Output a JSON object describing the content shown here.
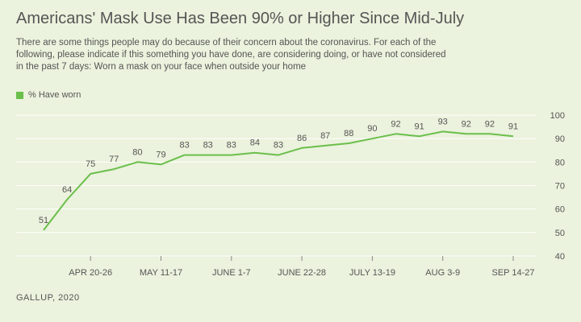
{
  "title": "Americans' Mask Use Has Been 90% or Higher Since Mid-July",
  "subtitle": "There are some things people may do because of their concern about the coronavirus. For each of the following, please indicate if this something you have done, are considering doing, or have not considered in the past 7 days: Worn a mask on your face when outside your home",
  "source": "GALLUP, 2020",
  "colors": {
    "series": "#6abf4b",
    "background": "#ebf2dd",
    "grid": "#ffffff",
    "text": "#555555"
  },
  "chart_data": {
    "type": "line",
    "series": [
      {
        "name": "% Have worn",
        "values": [
          51,
          64,
          75,
          77,
          80,
          79,
          83,
          83,
          83,
          84,
          83,
          86,
          87,
          88,
          90,
          92,
          91,
          93,
          92,
          92,
          91
        ]
      }
    ],
    "x_tick_labels": [
      "APR 20-26",
      "MAY 11-17",
      "JUNE 1-7",
      "JUNE 22-28",
      "JULY 13-19",
      "AUG 3-9",
      "SEP 14-27"
    ],
    "x_tick_points": [
      2,
      5,
      8,
      11,
      14,
      17,
      20
    ],
    "y_ticks": [
      40,
      50,
      60,
      70,
      80,
      90,
      100
    ],
    "ylim": [
      40,
      100
    ],
    "y_axis_side": "right",
    "grid": true,
    "data_labels": true,
    "legend_position": "top-left"
  }
}
